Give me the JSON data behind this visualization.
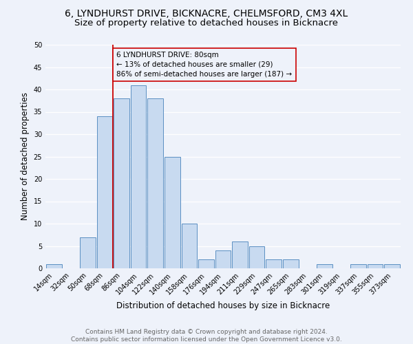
{
  "title": "6, LYNDHURST DRIVE, BICKNACRE, CHELMSFORD, CM3 4XL",
  "subtitle": "Size of property relative to detached houses in Bicknacre",
  "xlabel": "Distribution of detached houses by size in Bicknacre",
  "ylabel": "Number of detached properties",
  "categories": [
    "14sqm",
    "32sqm",
    "50sqm",
    "68sqm",
    "86sqm",
    "104sqm",
    "122sqm",
    "140sqm",
    "158sqm",
    "176sqm",
    "194sqm",
    "211sqm",
    "229sqm",
    "247sqm",
    "265sqm",
    "283sqm",
    "301sqm",
    "319sqm",
    "337sqm",
    "355sqm",
    "373sqm"
  ],
  "values": [
    1,
    0,
    7,
    34,
    38,
    41,
    38,
    25,
    10,
    2,
    4,
    6,
    5,
    2,
    2,
    0,
    1,
    0,
    1,
    1,
    1
  ],
  "bar_color": "#c8daf0",
  "bar_edge_color": "#5a8fc2",
  "property_line_color": "#cc0000",
  "annotation_text": "6 LYNDHURST DRIVE: 80sqm\n← 13% of detached houses are smaller (29)\n86% of semi-detached houses are larger (187) →",
  "annotation_box_color": "#cc0000",
  "ylim": [
    0,
    50
  ],
  "yticks": [
    0,
    5,
    10,
    15,
    20,
    25,
    30,
    35,
    40,
    45,
    50
  ],
  "footer_text": "Contains HM Land Registry data © Crown copyright and database right 2024.\nContains public sector information licensed under the Open Government Licence v3.0.",
  "bg_color": "#eef2fa",
  "grid_color": "#ffffff",
  "title_fontsize": 10,
  "subtitle_fontsize": 9.5,
  "tick_fontsize": 7,
  "ylabel_fontsize": 8.5,
  "xlabel_fontsize": 8.5,
  "footer_fontsize": 6.5,
  "annot_fontsize": 7.5
}
